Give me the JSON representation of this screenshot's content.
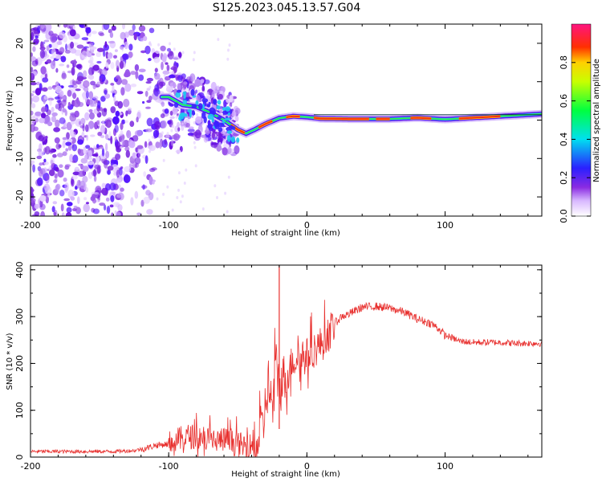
{
  "figure_title": "S125.2023.045.13.57.G04",
  "colors": {
    "snr_line": "#e8302e",
    "axis": "#000000"
  },
  "chart_data": [
    {
      "type": "heatmap",
      "title": "S125.2023.045.13.57.G04",
      "xlabel": "Height of straight line (km)",
      "ylabel": "Frequency (Hz)",
      "xlim": [
        -200,
        170
      ],
      "ylim": [
        -25,
        25
      ],
      "x_ticks": [
        -200,
        -100,
        0,
        100
      ],
      "y_ticks": [
        -20,
        -10,
        0,
        10,
        20
      ],
      "grid": false,
      "colormap": "rainbow (white-purple-blue-cyan-green-yellow-red-magenta)",
      "colorbar": {
        "label": "Normalized spectral amplitude",
        "range": [
          0.0,
          1.0
        ],
        "ticks": [
          "0.0",
          "0.2",
          "0.4",
          "0.6",
          "0.8"
        ]
      },
      "ridge": [
        {
          "x": -100,
          "y": 6
        },
        {
          "x": -90,
          "y": 4
        },
        {
          "x": -80,
          "y": 3.5
        },
        {
          "x": -70,
          "y": 2
        },
        {
          "x": -60,
          "y": 0
        },
        {
          "x": -50,
          "y": -2.5
        },
        {
          "x": -44,
          "y": -3.5
        },
        {
          "x": -38,
          "y": -2.5
        },
        {
          "x": -30,
          "y": -1
        },
        {
          "x": -20,
          "y": 0.5
        },
        {
          "x": -10,
          "y": 1
        },
        {
          "x": 0,
          "y": 0.8
        },
        {
          "x": 10,
          "y": 0.4
        },
        {
          "x": 30,
          "y": 0.3
        },
        {
          "x": 60,
          "y": 0.3
        },
        {
          "x": 80,
          "y": 0.6
        },
        {
          "x": 100,
          "y": 0.2
        },
        {
          "x": 130,
          "y": 0.8
        },
        {
          "x": 170,
          "y": 1.6
        }
      ]
    },
    {
      "type": "line",
      "xlabel": "Height of straight line (km)",
      "ylabel": "SNR (10 * v/v)",
      "xlim": [
        -200,
        170
      ],
      "ylim": [
        0,
        410
      ],
      "x_ticks": [
        -200,
        -100,
        0,
        100
      ],
      "y_ticks": [
        0,
        100,
        200,
        300,
        400
      ],
      "grid": false,
      "series": [
        {
          "color": "#e8302e",
          "x": [
            -200,
            -180,
            -160,
            -140,
            -125,
            -115,
            -110,
            -100,
            -95,
            -90,
            -85,
            -80,
            -75,
            -70,
            -65,
            -60,
            -55,
            -50,
            -45,
            -40,
            -35,
            -32,
            -30,
            -28,
            -25,
            -22,
            -20,
            -18,
            -15,
            -12,
            -10,
            -5,
            0,
            5,
            10,
            15,
            20,
            25,
            30,
            40,
            50,
            60,
            70,
            80,
            90,
            95,
            100,
            105,
            110,
            120,
            130,
            140,
            150,
            160,
            170
          ],
          "y": [
            12,
            12,
            12,
            12,
            14,
            20,
            25,
            28,
            35,
            40,
            45,
            42,
            45,
            38,
            35,
            38,
            32,
            28,
            22,
            25,
            40,
            60,
            110,
            160,
            100,
            200,
            150,
            160,
            170,
            190,
            210,
            210,
            215,
            230,
            240,
            260,
            285,
            300,
            305,
            320,
            322,
            318,
            310,
            295,
            285,
            275,
            260,
            255,
            248,
            245,
            245,
            245,
            243,
            243,
            243
          ],
          "spike": {
            "x": -20,
            "y": 410
          }
        }
      ]
    }
  ]
}
